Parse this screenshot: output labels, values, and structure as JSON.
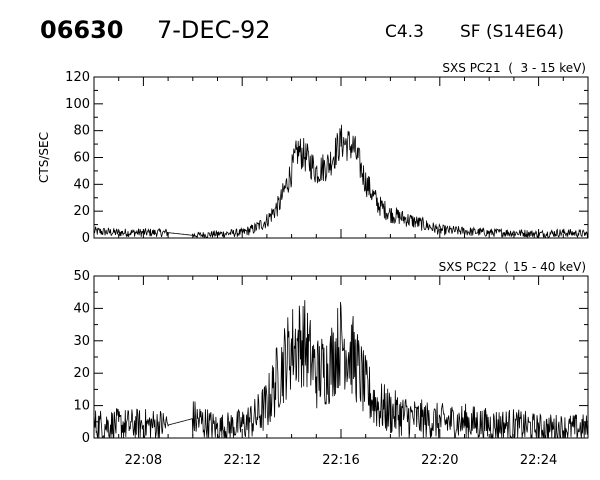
{
  "header": {
    "event_number": "06630",
    "date": "7-DEC-92",
    "goes_class": "C4.3",
    "location": "SF (S14E64)"
  },
  "chart_data": [
    {
      "type": "line",
      "title": "SXS PC21  (  3 - 15 keV)",
      "ylabel": "CTS/SEC",
      "xlabel": "",
      "xlim": [
        "22:06",
        "22:26"
      ],
      "ylim": [
        0,
        120
      ],
      "yticks": [
        0,
        20,
        40,
        60,
        80,
        100,
        120
      ],
      "xticks": [
        "22:08",
        "22:12",
        "22:16",
        "22:20",
        "22:24"
      ],
      "x_tick_labels_shown": false,
      "grid": false,
      "series": [
        {
          "x": [
            "22:06",
            "22:07",
            "22:08",
            "22:09",
            "22:10",
            "22:11",
            "22:12",
            "22:12:30",
            "22:13",
            "22:13:30",
            "22:14",
            "22:14:15",
            "22:14:30",
            "22:15",
            "22:15:30",
            "22:16",
            "22:16:30",
            "22:17",
            "22:17:30",
            "22:18",
            "22:19",
            "22:20",
            "22:21",
            "22:22",
            "22:23",
            "22:24",
            "22:25",
            "22:26"
          ],
          "values": [
            5,
            4,
            4,
            4,
            2,
            3,
            4,
            7,
            13,
            25,
            50,
            65,
            62,
            50,
            55,
            72,
            68,
            42,
            25,
            18,
            12,
            6,
            5,
            4,
            4,
            3,
            4,
            3
          ]
        }
      ]
    },
    {
      "type": "line",
      "title": "SXS PC22  ( 15 - 40 keV)",
      "ylabel": "",
      "xlabel": "",
      "xlim": [
        "22:06",
        "22:26"
      ],
      "ylim": [
        0,
        50
      ],
      "yticks": [
        0,
        10,
        20,
        30,
        40,
        50
      ],
      "xticks": [
        "22:08",
        "22:12",
        "22:16",
        "22:20",
        "22:24"
      ],
      "grid": false,
      "series": [
        {
          "x": [
            "22:06",
            "22:07",
            "22:08",
            "22:09",
            "22:10",
            "22:11",
            "22:12",
            "22:12:30",
            "22:13",
            "22:13:30",
            "22:14",
            "22:14:30",
            "22:15",
            "22:15:30",
            "22:16",
            "22:16:30",
            "22:17",
            "22:17:30",
            "22:18",
            "22:19",
            "22:20",
            "22:21",
            "22:22",
            "22:23",
            "22:24",
            "22:25",
            "22:26"
          ],
          "values": [
            4,
            4,
            4,
            4,
            6,
            3,
            4,
            6,
            10,
            20,
            28,
            30,
            20,
            22,
            30,
            25,
            15,
            10,
            8,
            6,
            5,
            5,
            4,
            4,
            3,
            3,
            3
          ]
        }
      ]
    }
  ]
}
